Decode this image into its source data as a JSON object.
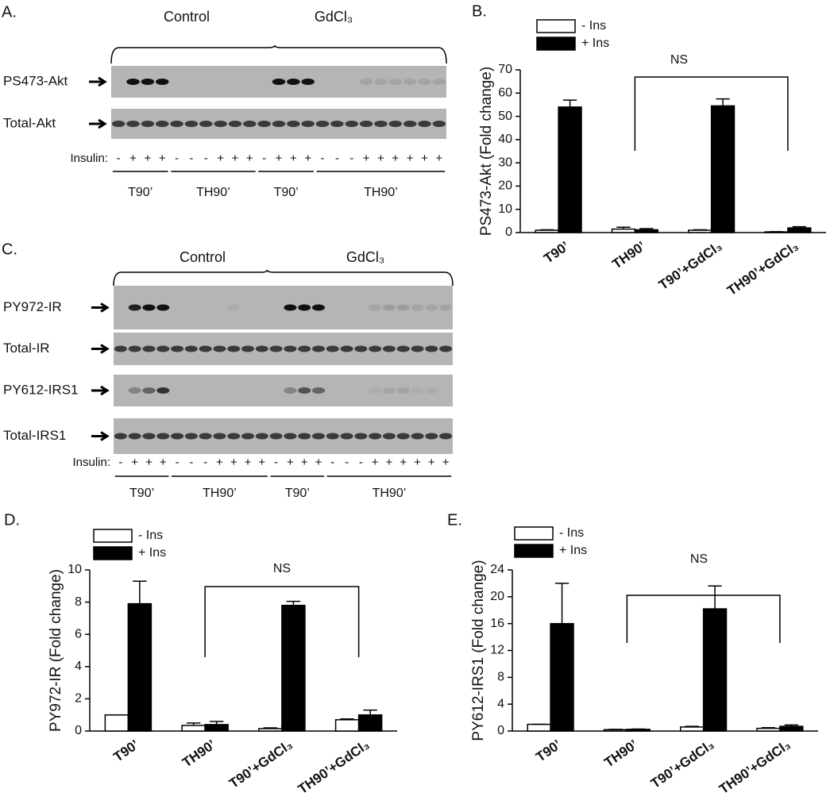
{
  "blots": [
    {
      "panel_label": "A.",
      "groups": [
        "Control",
        "GdCl₃"
      ],
      "rows": [
        "PS473-Akt",
        "Total-Akt"
      ],
      "insulin_label": "Insulin:",
      "insulin": [
        "-",
        "+",
        "+",
        "+",
        "-",
        "-",
        "-",
        "+",
        "+",
        "+",
        "-",
        "+",
        "+",
        "+",
        "-",
        "-",
        "-",
        "+",
        "+",
        "+",
        "+",
        "+",
        "+"
      ],
      "conditions": [
        "T90’",
        "TH90’",
        "T90’",
        "TH90’"
      ]
    },
    {
      "panel_label": "C.",
      "groups": [
        "Control",
        "GdCl₃"
      ],
      "rows": [
        "PY972-IR",
        "Total-IR",
        "PY612-IRS1",
        "Total-IRS1"
      ],
      "insulin_label": "Insulin:",
      "insulin": [
        "-",
        "+",
        "+",
        "+",
        "-",
        "-",
        "-",
        "+",
        "+",
        "+",
        "+",
        "-",
        "+",
        "+",
        "+",
        "-",
        "-",
        "-",
        "+",
        "+",
        "+",
        "+",
        "+",
        "+"
      ],
      "conditions": [
        "T90’",
        "TH90’",
        "T90’",
        "TH90’"
      ]
    }
  ],
  "chart_data": [
    {
      "type": "bar",
      "panel_label": "B.",
      "ylabel": "PS473-Akt (Fold change)",
      "categories": [
        "T90’",
        "TH90’",
        "T90’+GdCl₃",
        "TH90’+GdCl₃"
      ],
      "series": [
        {
          "name": "- Ins",
          "color": "#ffffff",
          "values": [
            1,
            1.5,
            1,
            0.3
          ],
          "errors": [
            0.2,
            0.8,
            0.2,
            0.1
          ]
        },
        {
          "name": "+ Ins",
          "color": "#000000",
          "values": [
            54,
            1.2,
            54.5,
            2
          ],
          "errors": [
            3,
            0.5,
            3,
            0.5
          ]
        }
      ],
      "ylim": [
        0,
        70
      ],
      "yticks": [
        0,
        10,
        20,
        30,
        40,
        50,
        60,
        70
      ],
      "annotation": "NS"
    },
    {
      "type": "bar",
      "panel_label": "D.",
      "ylabel": "PY972-IR (Fold change)",
      "categories": [
        "T90’",
        "TH90’",
        "T90’+GdCl₃",
        "TH90’+GdCl₃"
      ],
      "series": [
        {
          "name": "- Ins",
          "color": "#ffffff",
          "values": [
            1,
            0.35,
            0.15,
            0.7
          ],
          "errors": [
            0,
            0.15,
            0.05,
            0.05
          ]
        },
        {
          "name": "+ Ins",
          "color": "#000000",
          "values": [
            7.9,
            0.4,
            7.8,
            1.0
          ],
          "errors": [
            1.4,
            0.2,
            0.25,
            0.3
          ]
        }
      ],
      "ylim": [
        0,
        10
      ],
      "yticks": [
        0,
        2,
        4,
        6,
        8,
        10
      ],
      "annotation": "NS"
    },
    {
      "type": "bar",
      "panel_label": "E.",
      "ylabel": "PY612-IRS1 (Fold change)",
      "categories": [
        "T90’",
        "TH90’",
        "T90’+GdCl₃",
        "TH90’+GdCl₃"
      ],
      "series": [
        {
          "name": "- Ins",
          "color": "#ffffff",
          "values": [
            1,
            0.2,
            0.6,
            0.4
          ],
          "errors": [
            0,
            0.05,
            0.1,
            0.1
          ]
        },
        {
          "name": "+ Ins",
          "color": "#000000",
          "values": [
            16,
            0.25,
            18.2,
            0.7
          ],
          "errors": [
            6,
            0.05,
            3.4,
            0.2
          ]
        }
      ],
      "ylim": [
        0,
        24
      ],
      "yticks": [
        0,
        4,
        8,
        12,
        16,
        20,
        24
      ],
      "annotation": "NS"
    }
  ]
}
